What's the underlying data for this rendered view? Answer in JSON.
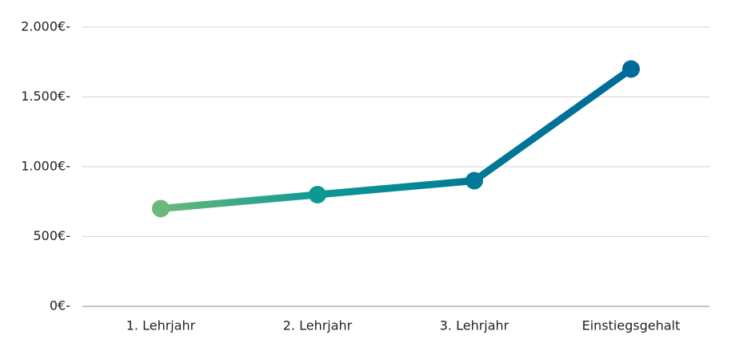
{
  "chart_data": {
    "type": "line",
    "categories": [
      "1. Lehrjahr",
      "2. Lehrjahr",
      "3. Lehrjahr",
      "Einstiegsgehalt"
    ],
    "values": [
      700,
      800,
      900,
      1700
    ],
    "point_colors": [
      "#6ab97a",
      "#0c9994",
      "#007a96",
      "#006a99"
    ],
    "ylim": [
      0,
      2000
    ],
    "yticks": [
      {
        "value": 0,
        "label": "0€-"
      },
      {
        "value": 500,
        "label": "500€-"
      },
      {
        "value": 1000,
        "label": "1.000€-"
      },
      {
        "value": 1500,
        "label": "1.500€-"
      },
      {
        "value": 2000,
        "label": "2.000€-"
      }
    ],
    "grid": true
  }
}
